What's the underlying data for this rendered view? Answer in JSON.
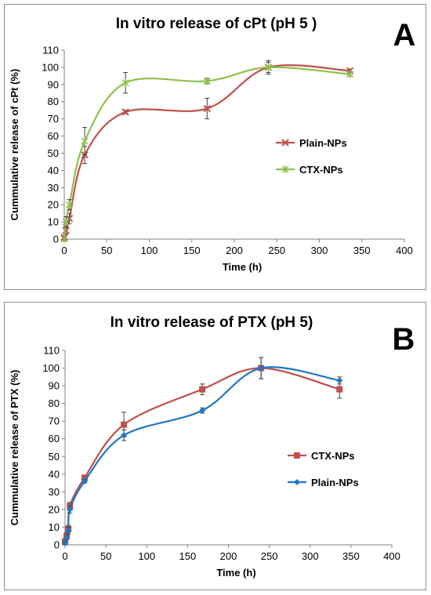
{
  "chart_data": [
    {
      "type": "line",
      "panel_label": "A",
      "title": "In vitro release of cPt (pH 5 )",
      "xlabel": "Time (h)",
      "ylabel": "Cummulative release of cPt (%)",
      "xlim": [
        0,
        400
      ],
      "ylim": [
        0,
        110
      ],
      "xticks": [
        0,
        50,
        100,
        150,
        200,
        250,
        300,
        350,
        400
      ],
      "yticks": [
        0,
        10,
        20,
        30,
        40,
        50,
        60,
        70,
        80,
        90,
        100,
        110
      ],
      "grid": false,
      "legend": "right",
      "error_bars": true,
      "series": [
        {
          "name": "Plain-NPs",
          "color": "#c0504d",
          "marker": "cross",
          "x": [
            0,
            2,
            6,
            24,
            72,
            168,
            240,
            336
          ],
          "y": [
            1,
            5,
            12,
            49,
            74,
            76,
            100,
            98
          ],
          "err": [
            1,
            2,
            3,
            5,
            1,
            6,
            3,
            1
          ]
        },
        {
          "name": "CTX-NPs",
          "color": "#8fc14a",
          "marker": "star",
          "x": [
            0,
            2,
            6,
            24,
            72,
            168,
            240,
            336
          ],
          "y": [
            0,
            10,
            20,
            57,
            91,
            92,
            100,
            96
          ],
          "err": [
            1,
            3,
            3,
            8,
            6,
            1.5,
            4,
            1
          ]
        }
      ]
    },
    {
      "type": "line",
      "panel_label": "B",
      "title": "In vitro release of PTX (pH 5)",
      "xlabel": "Time (h)",
      "ylabel": "Cummulative release of PTX (%)",
      "xlim": [
        0,
        400
      ],
      "ylim": [
        0,
        110
      ],
      "xticks": [
        0,
        50,
        100,
        150,
        200,
        250,
        300,
        350,
        400
      ],
      "yticks": [
        0,
        10,
        20,
        30,
        40,
        50,
        60,
        70,
        80,
        90,
        100,
        110
      ],
      "grid": false,
      "legend": "right",
      "error_bars": true,
      "series": [
        {
          "name": "CTX-NPs",
          "color": "#c0504d",
          "marker": "square",
          "x": [
            0,
            2,
            4,
            6,
            24,
            72,
            168,
            240,
            336
          ],
          "y": [
            2,
            5,
            9,
            22,
            38,
            68,
            88,
            100,
            88
          ],
          "err": [
            1,
            2,
            2,
            2,
            1,
            7,
            3,
            6,
            5
          ]
        },
        {
          "name": "Plain-NPs",
          "color": "#1f77c4",
          "marker": "diamond",
          "x": [
            0,
            2,
            4,
            6,
            24,
            72,
            168,
            240,
            336
          ],
          "y": [
            1,
            4,
            8,
            20,
            36,
            62,
            76,
            100,
            93
          ],
          "err": [
            1,
            1,
            2,
            2,
            1,
            3,
            1.5,
            6,
            2
          ]
        }
      ]
    }
  ]
}
